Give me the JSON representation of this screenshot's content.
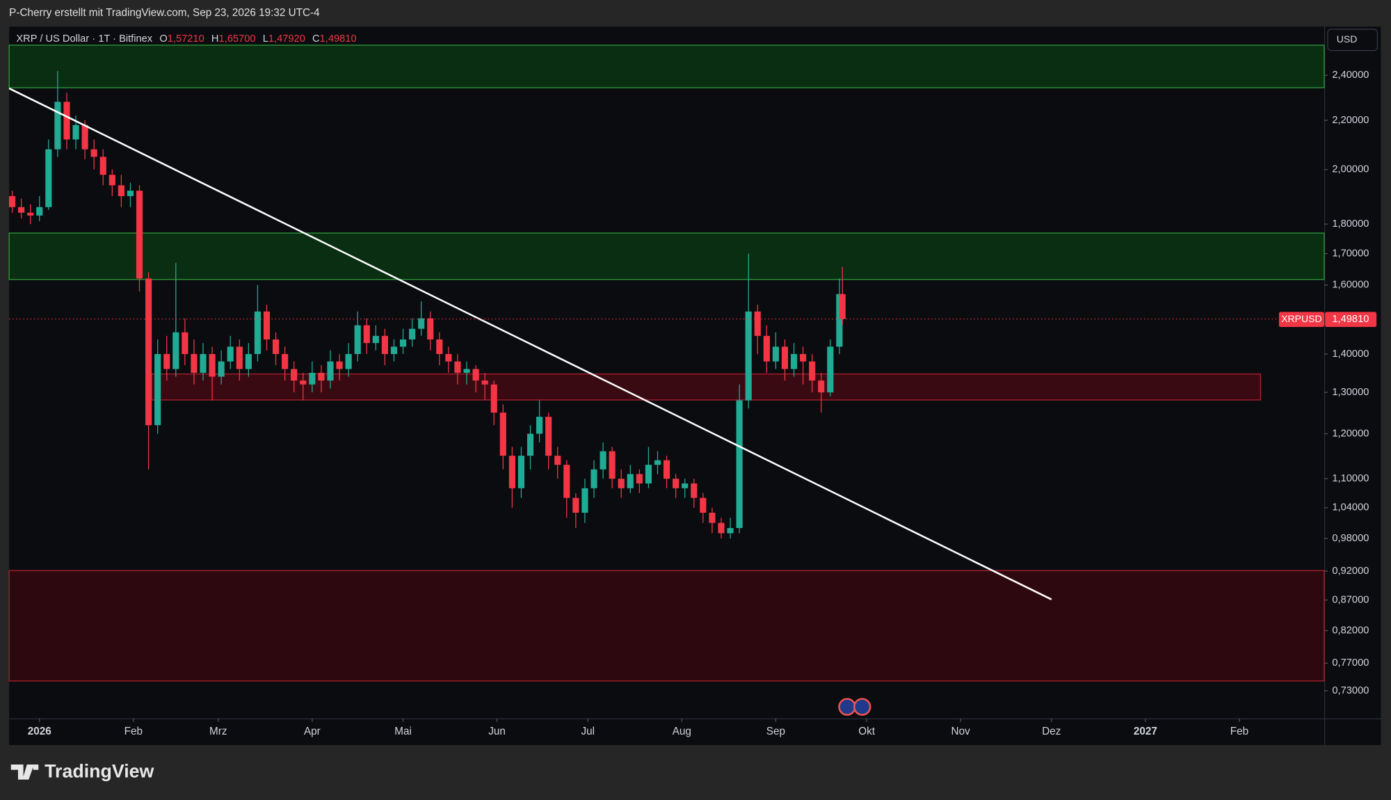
{
  "chart_data": {
    "type": "candlestick",
    "watermark": "P-Cherry erstellt mit TradingView.com, Sep 23, 2026 19:32 UTC-4",
    "symbol": "XRP / US Dollar · 1T · Bitfinex",
    "ohlc_legend": [
      {
        "key": "O",
        "value": "1,57210"
      },
      {
        "key": "H",
        "value": "1,65700"
      },
      {
        "key": "L",
        "value": "1,47920"
      },
      {
        "key": "C",
        "value": "1,49810"
      }
    ],
    "currency": "USD",
    "brand": "TradingView",
    "log_scale": true,
    "up_color": "#22ab94",
    "down_color": "#f23645",
    "xlim": [
      -10,
      424
    ],
    "ylim": [
      0.692,
      2.637
    ],
    "xticks": [
      {
        "value": 0,
        "label": "2026"
      },
      {
        "value": 31,
        "label": "Feb"
      },
      {
        "value": 59,
        "label": "Mrz"
      },
      {
        "value": 90,
        "label": "Apr"
      },
      {
        "value": 120,
        "label": "Mai"
      },
      {
        "value": 151,
        "label": "Jun"
      },
      {
        "value": 181,
        "label": "Jul"
      },
      {
        "value": 212,
        "label": "Aug"
      },
      {
        "value": 243,
        "label": "Sep"
      },
      {
        "value": 273,
        "label": "Okt"
      },
      {
        "value": 304,
        "label": "Nov"
      },
      {
        "value": 334,
        "label": "Dez"
      },
      {
        "value": 365,
        "label": "2027"
      },
      {
        "value": 396,
        "label": "Feb"
      }
    ],
    "yticks": [
      {
        "value": 2.4,
        "label": "2,40000"
      },
      {
        "value": 2.2,
        "label": "2,20000"
      },
      {
        "value": 2.0,
        "label": "2,00000"
      },
      {
        "value": 1.8,
        "label": "1,80000"
      },
      {
        "value": 1.7,
        "label": "1,70000"
      },
      {
        "value": 1.6,
        "label": "1,60000"
      },
      {
        "value": 1.4,
        "label": "1,40000"
      },
      {
        "value": 1.3,
        "label": "1,30000"
      },
      {
        "value": 1.2,
        "label": "1,20000"
      },
      {
        "value": 1.1,
        "label": "1,10000"
      },
      {
        "value": 1.04,
        "label": "1,04000"
      },
      {
        "value": 0.98,
        "label": "0,98000"
      },
      {
        "value": 0.92,
        "label": "0,92000"
      },
      {
        "value": 0.87,
        "label": "0,87000"
      },
      {
        "value": 0.82,
        "label": "0,82000"
      },
      {
        "value": 0.77,
        "label": "0,77000"
      },
      {
        "value": 0.73,
        "label": "0,73000"
      }
    ],
    "zones": [
      {
        "top": 2.544,
        "bottom": 2.343,
        "color": "#0a2e12"
      },
      {
        "top": 1.769,
        "bottom": 1.617,
        "color": "#0a2e12"
      },
      {
        "top": 1.347,
        "bottom": 1.281,
        "x0": 37,
        "x1": 403,
        "color": "#3a0a12"
      },
      {
        "top": 0.921,
        "bottom": 0.744,
        "color": "#2e080f"
      }
    ],
    "trendline": {
      "x": [
        -10,
        334
      ],
      "y": [
        2.34,
        0.871
      ]
    },
    "last_price": {
      "name": "XRPUSD",
      "value": 1.4981,
      "label": "1,49810"
    },
    "x": [
      -9,
      -6,
      -3,
      0,
      3,
      6,
      9,
      12,
      15,
      18,
      21,
      24,
      27,
      30,
      33,
      36,
      39,
      42,
      45,
      48,
      51,
      54,
      57,
      60,
      63,
      66,
      69,
      72,
      75,
      78,
      81,
      84,
      87,
      90,
      93,
      96,
      99,
      102,
      105,
      108,
      111,
      114,
      117,
      120,
      123,
      126,
      129,
      132,
      135,
      138,
      141,
      144,
      147,
      150,
      153,
      156,
      159,
      162,
      165,
      168,
      171,
      174,
      177,
      180,
      183,
      186,
      189,
      192,
      195,
      198,
      201,
      204,
      207,
      210,
      213,
      216,
      219,
      222,
      225,
      228,
      231,
      234,
      237,
      240,
      243,
      246,
      249,
      252,
      255,
      258,
      261,
      264,
      265
    ],
    "open": [
      1.9,
      1.86,
      1.84,
      1.83,
      1.86,
      2.08,
      2.28,
      2.12,
      2.18,
      2.08,
      2.05,
      1.98,
      1.94,
      1.9,
      1.92,
      1.62,
      1.22,
      1.4,
      1.36,
      1.46,
      1.4,
      1.35,
      1.4,
      1.34,
      1.38,
      1.42,
      1.36,
      1.4,
      1.52,
      1.44,
      1.4,
      1.36,
      1.33,
      1.32,
      1.35,
      1.33,
      1.38,
      1.36,
      1.4,
      1.48,
      1.43,
      1.45,
      1.4,
      1.42,
      1.44,
      1.47,
      1.5,
      1.44,
      1.4,
      1.38,
      1.35,
      1.36,
      1.33,
      1.32,
      1.25,
      1.15,
      1.08,
      1.15,
      1.2,
      1.24,
      1.15,
      1.13,
      1.06,
      1.03,
      1.08,
      1.12,
      1.16,
      1.1,
      1.08,
      1.11,
      1.09,
      1.13,
      1.14,
      1.1,
      1.08,
      1.09,
      1.06,
      1.03,
      1.01,
      0.99,
      1.0,
      1.28,
      1.52,
      1.45,
      1.38,
      1.42,
      1.36,
      1.4,
      1.38,
      1.33,
      1.3,
      1.42,
      1.5721
    ],
    "high": [
      1.92,
      1.89,
      1.87,
      1.9,
      2.12,
      2.42,
      2.32,
      2.22,
      2.2,
      2.12,
      2.08,
      2.0,
      1.98,
      1.95,
      1.94,
      1.64,
      1.44,
      1.45,
      1.67,
      1.5,
      1.44,
      1.43,
      1.42,
      1.41,
      1.45,
      1.44,
      1.43,
      1.6,
      1.54,
      1.46,
      1.42,
      1.38,
      1.35,
      1.38,
      1.37,
      1.41,
      1.4,
      1.43,
      1.52,
      1.5,
      1.48,
      1.47,
      1.44,
      1.47,
      1.5,
      1.55,
      1.52,
      1.46,
      1.42,
      1.4,
      1.38,
      1.37,
      1.35,
      1.33,
      1.27,
      1.17,
      1.17,
      1.22,
      1.28,
      1.25,
      1.17,
      1.14,
      1.07,
      1.1,
      1.14,
      1.18,
      1.17,
      1.12,
      1.13,
      1.12,
      1.17,
      1.16,
      1.15,
      1.11,
      1.1,
      1.1,
      1.07,
      1.04,
      1.02,
      1.02,
      1.32,
      1.7,
      1.54,
      1.48,
      1.46,
      1.44,
      1.43,
      1.42,
      1.4,
      1.35,
      1.44,
      1.62,
      1.657
    ],
    "low": [
      1.84,
      1.82,
      1.8,
      1.81,
      1.85,
      2.05,
      2.08,
      2.08,
      2.04,
      2.0,
      1.94,
      1.9,
      1.86,
      1.86,
      1.58,
      1.12,
      1.2,
      1.33,
      1.34,
      1.37,
      1.32,
      1.33,
      1.28,
      1.32,
      1.36,
      1.33,
      1.34,
      1.38,
      1.41,
      1.37,
      1.33,
      1.3,
      1.28,
      1.3,
      1.3,
      1.31,
      1.33,
      1.34,
      1.38,
      1.4,
      1.41,
      1.37,
      1.38,
      1.4,
      1.42,
      1.45,
      1.41,
      1.37,
      1.35,
      1.32,
      1.32,
      1.3,
      1.28,
      1.22,
      1.12,
      1.04,
      1.06,
      1.12,
      1.18,
      1.12,
      1.1,
      1.02,
      1.0,
      1.01,
      1.06,
      1.1,
      1.08,
      1.06,
      1.07,
      1.07,
      1.08,
      1.11,
      1.08,
      1.06,
      1.06,
      1.04,
      1.01,
      0.99,
      0.98,
      0.98,
      0.99,
      1.26,
      1.4,
      1.35,
      1.36,
      1.33,
      1.34,
      1.32,
      1.3,
      1.25,
      1.29,
      1.4,
      1.4792
    ],
    "close": [
      1.86,
      1.84,
      1.83,
      1.86,
      2.08,
      2.28,
      2.12,
      2.18,
      2.08,
      2.05,
      1.98,
      1.94,
      1.9,
      1.92,
      1.62,
      1.22,
      1.4,
      1.36,
      1.46,
      1.4,
      1.35,
      1.4,
      1.34,
      1.38,
      1.42,
      1.36,
      1.4,
      1.52,
      1.44,
      1.4,
      1.36,
      1.33,
      1.32,
      1.35,
      1.33,
      1.38,
      1.36,
      1.4,
      1.48,
      1.43,
      1.45,
      1.4,
      1.42,
      1.44,
      1.47,
      1.5,
      1.44,
      1.4,
      1.38,
      1.35,
      1.36,
      1.33,
      1.32,
      1.25,
      1.15,
      1.08,
      1.15,
      1.2,
      1.24,
      1.15,
      1.13,
      1.06,
      1.03,
      1.08,
      1.12,
      1.16,
      1.1,
      1.08,
      1.11,
      1.09,
      1.13,
      1.14,
      1.1,
      1.08,
      1.09,
      1.06,
      1.03,
      1.01,
      0.99,
      1.0,
      1.28,
      1.52,
      1.45,
      1.38,
      1.42,
      1.36,
      1.4,
      1.38,
      1.33,
      1.3,
      1.42,
      1.5721,
      1.4981
    ]
  }
}
